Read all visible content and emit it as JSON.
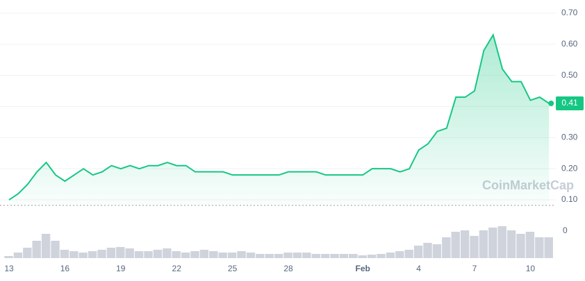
{
  "chart_data": [
    {
      "type": "line",
      "watermark": "CoinMarketCap",
      "categories": [
        "13",
        null,
        null,
        null,
        null,
        null,
        "16",
        null,
        null,
        null,
        null,
        null,
        "19",
        null,
        null,
        null,
        null,
        null,
        "22",
        null,
        null,
        null,
        null,
        null,
        "25",
        null,
        null,
        null,
        null,
        null,
        "28",
        null,
        null,
        null,
        null,
        null,
        null,
        null,
        "Feb",
        null,
        null,
        null,
        null,
        null,
        "4",
        null,
        null,
        null,
        null,
        null,
        "7",
        null,
        null,
        null,
        null,
        null,
        "10",
        null,
        null
      ],
      "series": [
        {
          "color": "#16c784",
          "values": [
            0.1,
            0.12,
            0.15,
            0.19,
            0.22,
            0.18,
            0.16,
            0.18,
            0.2,
            0.18,
            0.19,
            0.21,
            0.2,
            0.21,
            0.2,
            0.21,
            0.21,
            0.22,
            0.21,
            0.21,
            0.19,
            0.19,
            0.19,
            0.19,
            0.18,
            0.18,
            0.18,
            0.18,
            0.18,
            0.18,
            0.19,
            0.19,
            0.19,
            0.19,
            0.18,
            0.18,
            0.18,
            0.18,
            0.18,
            0.2,
            0.2,
            0.2,
            0.19,
            0.2,
            0.26,
            0.28,
            0.32,
            0.33,
            0.43,
            0.43,
            0.45,
            0.58,
            0.63,
            0.52,
            0.48,
            0.48,
            0.42,
            0.43,
            0.41
          ]
        }
      ],
      "current_value": 0.41,
      "ylim": [
        0.08,
        0.74
      ],
      "yticks": [
        {
          "value": 0.1,
          "label": "0.10"
        },
        {
          "value": 0.2,
          "label": "0.20"
        },
        {
          "value": 0.3,
          "label": "0.30"
        },
        {
          "value": 0.4,
          "label": "0.40"
        },
        {
          "value": 0.5,
          "label": "0.50"
        },
        {
          "value": 0.6,
          "label": "0.60"
        },
        {
          "value": 0.7,
          "label": "0.70"
        }
      ],
      "grid": true
    },
    {
      "type": "bar",
      "series": [
        {
          "color": "#cfd3dc",
          "values": [
            3,
            8,
            15,
            25,
            35,
            25,
            12,
            10,
            8,
            10,
            12,
            15,
            16,
            14,
            10,
            10,
            12,
            14,
            10,
            8,
            10,
            12,
            10,
            8,
            8,
            10,
            8,
            6,
            6,
            6,
            8,
            8,
            8,
            6,
            6,
            6,
            6,
            6,
            4,
            5,
            6,
            8,
            10,
            12,
            18,
            22,
            20,
            30,
            38,
            40,
            32,
            40,
            44,
            46,
            40,
            35,
            38,
            30,
            30
          ]
        }
      ],
      "ylim": [
        0,
        50
      ],
      "yticks": [
        0
      ]
    }
  ]
}
